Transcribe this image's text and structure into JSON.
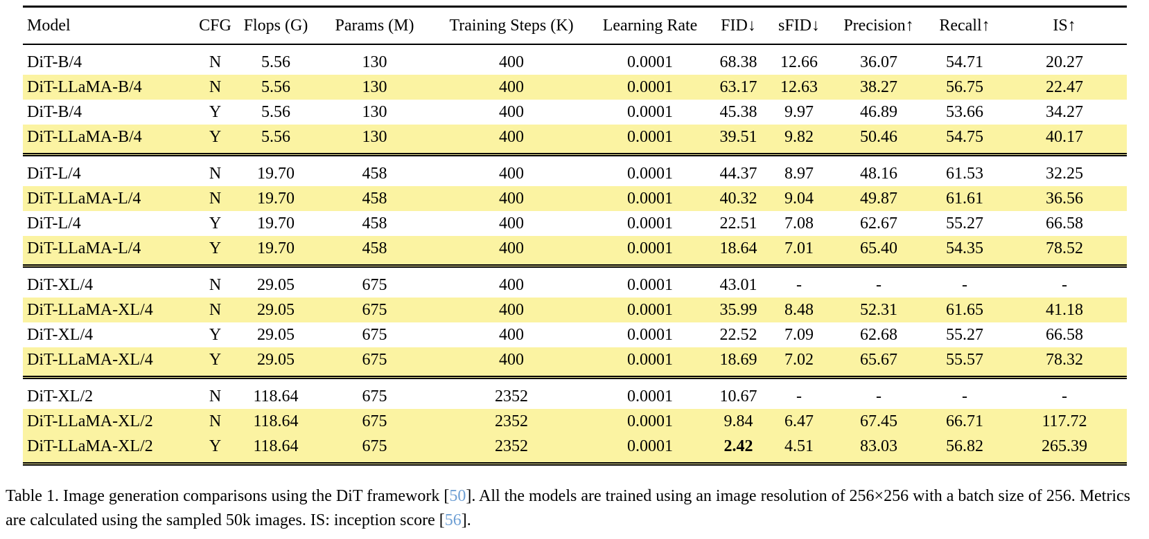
{
  "colors": {
    "highlight_row": "#FBF3A2",
    "citation_link": "#6E9FD4",
    "rule": "#000000"
  },
  "table": {
    "columns": [
      {
        "label": "Model"
      },
      {
        "label": "CFG"
      },
      {
        "label": "Flops (G)"
      },
      {
        "label": "Params (M)"
      },
      {
        "label": "Training Steps (K)"
      },
      {
        "label": "Learning Rate"
      },
      {
        "label": "FID↓"
      },
      {
        "label": "sFID↓"
      },
      {
        "label": "Precision↑"
      },
      {
        "label": "Recall↑"
      },
      {
        "label": "IS↑"
      }
    ],
    "groups": [
      {
        "rows": [
          {
            "highlight": false,
            "cells": [
              "DiT-B/4",
              "N",
              "5.56",
              "130",
              "400",
              "0.0001",
              "68.38",
              "12.66",
              "36.07",
              "54.71",
              "20.27"
            ]
          },
          {
            "highlight": true,
            "cells": [
              "DiT-LLaMA-B/4",
              "N",
              "5.56",
              "130",
              "400",
              "0.0001",
              "63.17",
              "12.63",
              "38.27",
              "56.75",
              "22.47"
            ]
          },
          {
            "highlight": false,
            "cells": [
              "DiT-B/4",
              "Y",
              "5.56",
              "130",
              "400",
              "0.0001",
              "45.38",
              "9.97",
              "46.89",
              "53.66",
              "34.27"
            ]
          },
          {
            "highlight": true,
            "cells": [
              "DiT-LLaMA-B/4",
              "Y",
              "5.56",
              "130",
              "400",
              "0.0001",
              "39.51",
              "9.82",
              "50.46",
              "54.75",
              "40.17"
            ]
          }
        ]
      },
      {
        "rows": [
          {
            "highlight": false,
            "cells": [
              "DiT-L/4",
              "N",
              "19.70",
              "458",
              "400",
              "0.0001",
              "44.37",
              "8.97",
              "48.16",
              "61.53",
              "32.25"
            ]
          },
          {
            "highlight": true,
            "cells": [
              "DiT-LLaMA-L/4",
              "N",
              "19.70",
              "458",
              "400",
              "0.0001",
              "40.32",
              "9.04",
              "49.87",
              "61.61",
              "36.56"
            ]
          },
          {
            "highlight": false,
            "cells": [
              "DiT-L/4",
              "Y",
              "19.70",
              "458",
              "400",
              "0.0001",
              "22.51",
              "7.08",
              "62.67",
              "55.27",
              "66.58"
            ]
          },
          {
            "highlight": true,
            "cells": [
              "DiT-LLaMA-L/4",
              "Y",
              "19.70",
              "458",
              "400",
              "0.0001",
              "18.64",
              "7.01",
              "65.40",
              "54.35",
              "78.52"
            ]
          }
        ]
      },
      {
        "rows": [
          {
            "highlight": false,
            "cells": [
              "DiT-XL/4",
              "N",
              "29.05",
              "675",
              "400",
              "0.0001",
              "43.01",
              "-",
              "-",
              "-",
              "-"
            ]
          },
          {
            "highlight": true,
            "cells": [
              "DiT-LLaMA-XL/4",
              "N",
              "29.05",
              "675",
              "400",
              "0.0001",
              "35.99",
              "8.48",
              "52.31",
              "61.65",
              "41.18"
            ]
          },
          {
            "highlight": false,
            "cells": [
              "DiT-XL/4",
              "Y",
              "29.05",
              "675",
              "400",
              "0.0001",
              "22.52",
              "7.09",
              "62.68",
              "55.27",
              "66.58"
            ]
          },
          {
            "highlight": true,
            "cells": [
              "DiT-LLaMA-XL/4",
              "Y",
              "29.05",
              "675",
              "400",
              "0.0001",
              "18.69",
              "7.02",
              "65.67",
              "55.57",
              "78.32"
            ]
          }
        ]
      },
      {
        "rows": [
          {
            "highlight": false,
            "cells": [
              "DiT-XL/2",
              "N",
              "118.64",
              "675",
              "2352",
              "0.0001",
              "10.67",
              "-",
              "-",
              "-",
              "-"
            ]
          },
          {
            "highlight": true,
            "cells": [
              "DiT-LLaMA-XL/2",
              "N",
              "118.64",
              "675",
              "2352",
              "0.0001",
              "9.84",
              "6.47",
              "67.45",
              "66.71",
              "117.72"
            ]
          },
          {
            "highlight": true,
            "bold": [
              6
            ],
            "cells": [
              "DiT-LLaMA-XL/2",
              "Y",
              "118.64",
              "675",
              "2352",
              "0.0001",
              "2.42",
              "4.51",
              "83.03",
              "56.82",
              "265.39"
            ]
          }
        ]
      }
    ]
  },
  "caption": {
    "segments": [
      {
        "style": "normal",
        "text": "Table 1. Image generation comparisons using the DiT framework ["
      },
      {
        "style": "link",
        "text": "50"
      },
      {
        "style": "normal",
        "text": "]. All the models are trained using an image resolution of 256×256 with a batch size of 256. Metrics are calculated using the sampled 50k images. IS: inception score ["
      },
      {
        "style": "link",
        "text": "56"
      },
      {
        "style": "normal",
        "text": "]."
      }
    ]
  }
}
